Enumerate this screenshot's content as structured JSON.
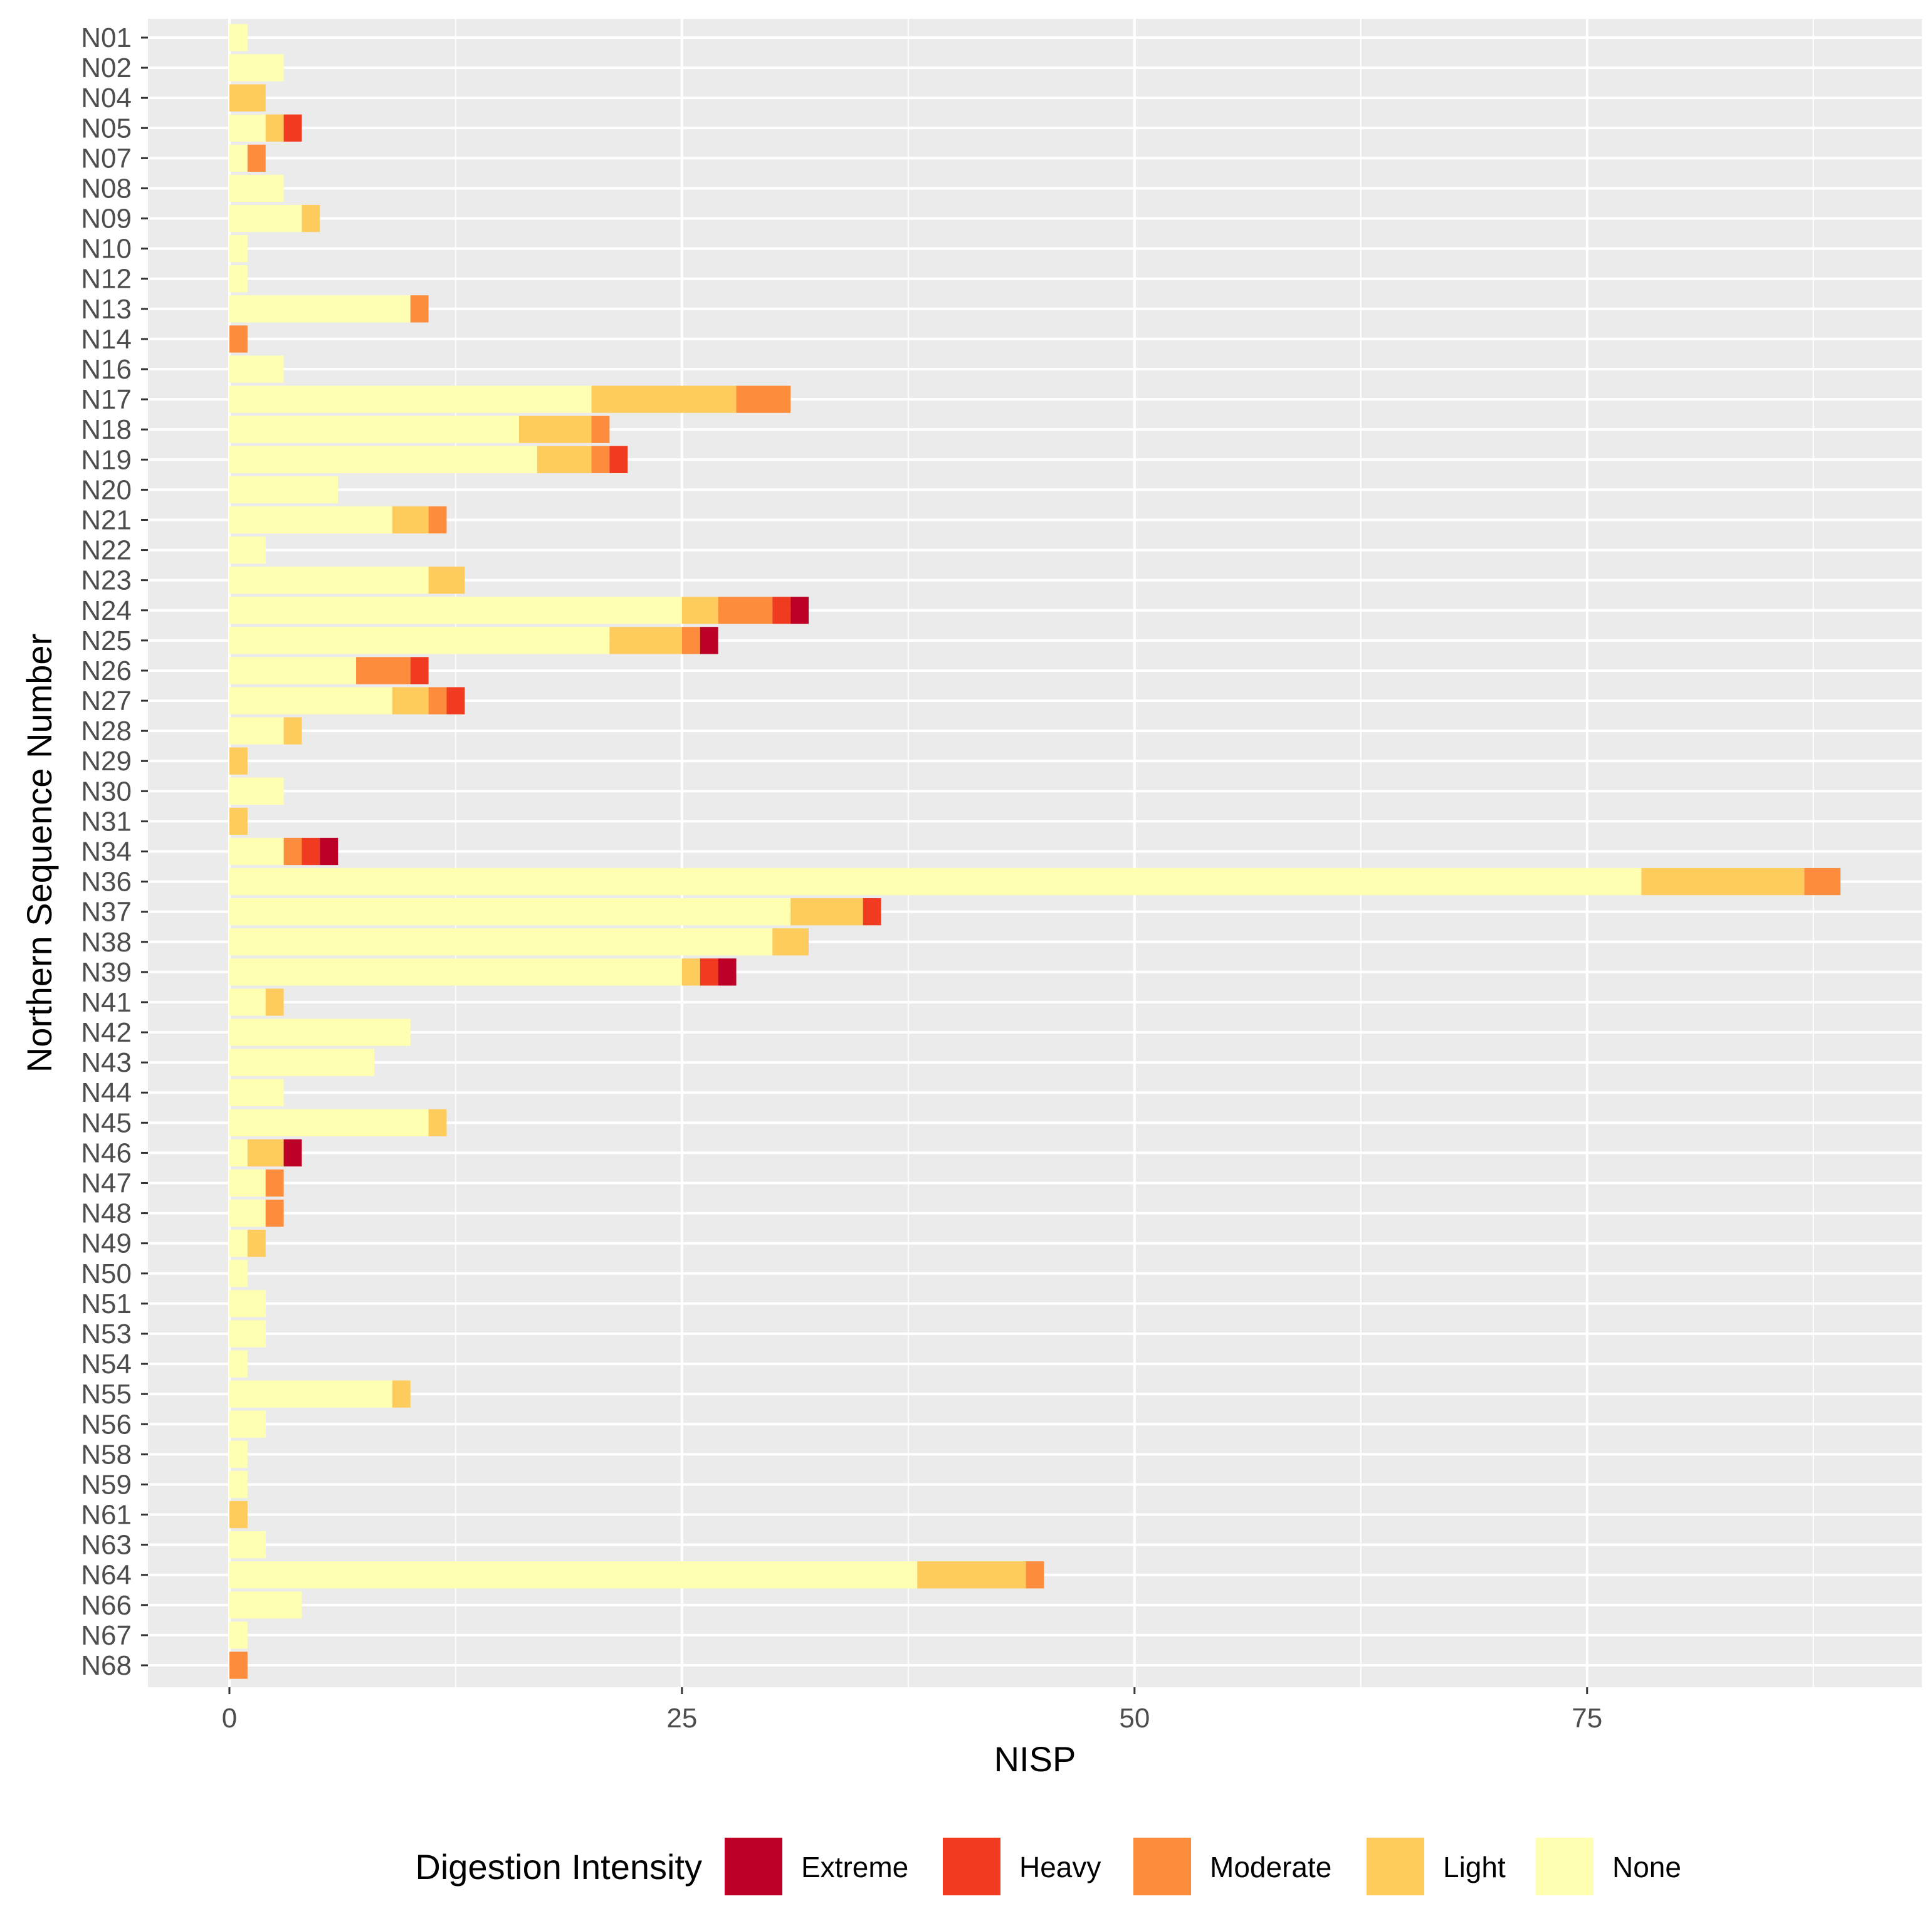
{
  "chart_data": {
    "type": "bar",
    "orientation": "horizontal",
    "stacked": true,
    "title": "",
    "xlabel": "NISP",
    "ylabel": "Northern Sequence Number",
    "xlim": [
      -4.5,
      93.5
    ],
    "xticks": [
      0,
      25,
      50,
      75
    ],
    "grid": true,
    "legend": {
      "title": "Digestion Intensity",
      "placement": "bottom"
    },
    "categories": [
      "N01",
      "N02",
      "N04",
      "N05",
      "N07",
      "N08",
      "N09",
      "N10",
      "N12",
      "N13",
      "N14",
      "N16",
      "N17",
      "N18",
      "N19",
      "N20",
      "N21",
      "N22",
      "N23",
      "N24",
      "N25",
      "N26",
      "N27",
      "N28",
      "N29",
      "N30",
      "N31",
      "N34",
      "N36",
      "N37",
      "N38",
      "N39",
      "N41",
      "N42",
      "N43",
      "N44",
      "N45",
      "N46",
      "N47",
      "N48",
      "N49",
      "N50",
      "N51",
      "N53",
      "N54",
      "N55",
      "N56",
      "N58",
      "N59",
      "N61",
      "N63",
      "N64",
      "N66",
      "N67",
      "N68"
    ],
    "series": [
      {
        "name": "None",
        "color": "#FFFFB2",
        "values": [
          1,
          3,
          0,
          2,
          1,
          3,
          4,
          1,
          1,
          10,
          0,
          3,
          20,
          16,
          17,
          6,
          9,
          2,
          11,
          25,
          21,
          7,
          9,
          3,
          0,
          3,
          0,
          3,
          78,
          31,
          30,
          25,
          2,
          10,
          8,
          3,
          11,
          1,
          2,
          2,
          1,
          1,
          2,
          2,
          1,
          9,
          2,
          1,
          1,
          0,
          2,
          38,
          4,
          1,
          0
        ]
      },
      {
        "name": "Light",
        "color": "#FECC5C",
        "values": [
          0,
          0,
          2,
          1,
          0,
          0,
          1,
          0,
          0,
          0,
          0,
          0,
          8,
          4,
          3,
          0,
          2,
          0,
          2,
          2,
          4,
          0,
          2,
          1,
          1,
          0,
          1,
          0,
          9,
          4,
          2,
          1,
          1,
          0,
          0,
          0,
          1,
          2,
          0,
          0,
          1,
          0,
          0,
          0,
          0,
          1,
          0,
          0,
          0,
          1,
          0,
          6,
          0,
          0,
          0
        ]
      },
      {
        "name": "Moderate",
        "color": "#FD8D3C",
        "values": [
          0,
          0,
          0,
          0,
          1,
          0,
          0,
          0,
          0,
          1,
          1,
          0,
          3,
          1,
          1,
          0,
          1,
          0,
          0,
          3,
          1,
          3,
          1,
          0,
          0,
          0,
          0,
          1,
          2,
          0,
          0,
          0,
          0,
          0,
          0,
          0,
          0,
          0,
          1,
          1,
          0,
          0,
          0,
          0,
          0,
          0,
          0,
          0,
          0,
          0,
          0,
          1,
          0,
          0,
          1
        ]
      },
      {
        "name": "Heavy",
        "color": "#F03B20",
        "values": [
          0,
          0,
          0,
          1,
          0,
          0,
          0,
          0,
          0,
          0,
          0,
          0,
          0,
          0,
          1,
          0,
          0,
          0,
          0,
          1,
          0,
          1,
          1,
          0,
          0,
          0,
          0,
          1,
          0,
          1,
          0,
          1,
          0,
          0,
          0,
          0,
          0,
          0,
          0,
          0,
          0,
          0,
          0,
          0,
          0,
          0,
          0,
          0,
          0,
          0,
          0,
          0,
          0,
          0,
          0
        ]
      },
      {
        "name": "Extreme",
        "color": "#BD0026",
        "values": [
          0,
          0,
          0,
          0,
          0,
          0,
          0,
          0,
          0,
          0,
          0,
          0,
          0,
          0,
          0,
          0,
          0,
          0,
          0,
          1,
          1,
          0,
          0,
          0,
          0,
          0,
          0,
          1,
          0,
          0,
          0,
          1,
          0,
          0,
          0,
          0,
          0,
          1,
          0,
          0,
          0,
          0,
          0,
          0,
          0,
          0,
          0,
          0,
          0,
          0,
          0,
          0,
          0,
          0,
          0
        ]
      }
    ],
    "legend_order": [
      "Extreme",
      "Heavy",
      "Moderate",
      "Light",
      "None"
    ],
    "stack_order": [
      "None",
      "Light",
      "Moderate",
      "Heavy",
      "Extreme"
    ]
  }
}
